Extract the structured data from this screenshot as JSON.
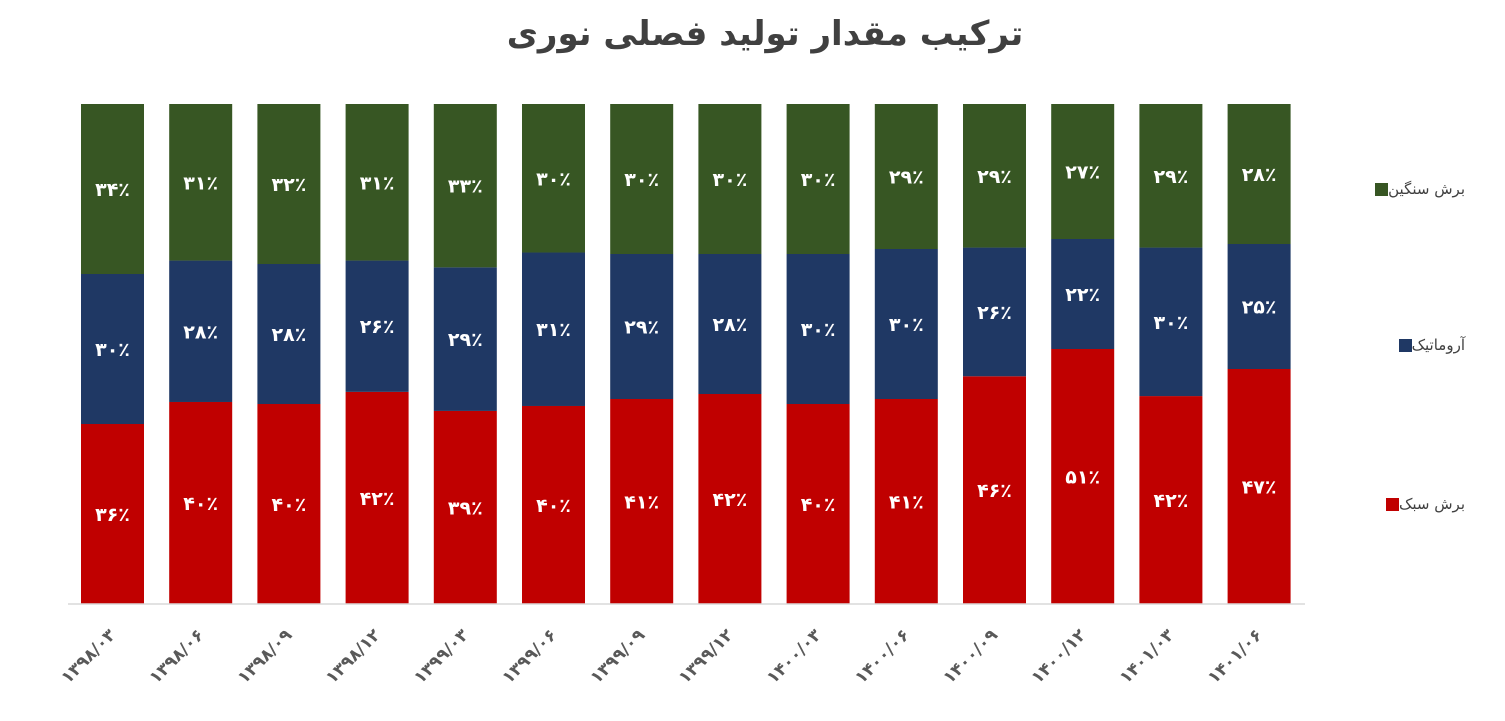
{
  "chart_data": {
    "type": "bar",
    "stacked": true,
    "normalized": true,
    "title": "ترکیب مقدار تولید فصلی نوری",
    "categories": [
      "۱۳۹۸/۰۳",
      "۱۳۹۸/۰۶",
      "۱۳۹۸/۰۹",
      "۱۳۹۸/۱۲",
      "۱۳۹۹/۰۳",
      "۱۳۹۹/۰۶",
      "۱۳۹۹/۰۹",
      "۱۳۹۹/۱۲",
      "۱۴۰۰/۰۳",
      "۱۴۰۰/۰۶",
      "۱۴۰۰/۰۹",
      "۱۴۰۰/۱۲",
      "۱۴۰۱/۰۳",
      "۱۴۰۱/۰۶"
    ],
    "series": [
      {
        "name": "برش سبک",
        "color": "#c00000",
        "values": [
          36,
          40,
          40,
          42,
          39,
          40,
          41,
          42,
          40,
          41,
          46,
          51,
          42,
          47
        ],
        "labels": [
          "۳۶٪",
          "۴۰٪",
          "۴۰٪",
          "۴۲٪",
          "۳۹٪",
          "۴۰٪",
          "۴۱٪",
          "۴۲٪",
          "۴۰٪",
          "۴۱٪",
          "۴۶٪",
          "۵۱٪",
          "۴۲٪",
          "۴۷٪"
        ]
      },
      {
        "name": "آروماتیک",
        "color": "#1f3864",
        "values": [
          30,
          28,
          28,
          26,
          29,
          31,
          29,
          28,
          30,
          30,
          26,
          22,
          30,
          25
        ],
        "labels": [
          "۳۰٪",
          "۲۸٪",
          "۲۸٪",
          "۲۶٪",
          "۲۹٪",
          "۳۱٪",
          "۲۹٪",
          "۲۸٪",
          "۳۰٪",
          "۳۰٪",
          "۲۶٪",
          "۲۲٪",
          "۳۰٪",
          "۲۵٪"
        ]
      },
      {
        "name": "برش سنگین",
        "color": "#375623",
        "values": [
          34,
          31,
          32,
          31,
          33,
          30,
          30,
          30,
          30,
          29,
          29,
          27,
          29,
          28
        ],
        "labels": [
          "۳۴٪",
          "۳۱٪",
          "۳۲٪",
          "۳۱٪",
          "۳۳٪",
          "۳۰٪",
          "۳۰٪",
          "۳۰٪",
          "۳۰٪",
          "۲۹٪",
          "۲۹٪",
          "۲۷٪",
          "۲۹٪",
          "۲۸٪"
        ]
      }
    ],
    "ylim": [
      0,
      100
    ],
    "grid": false,
    "legend_position": "right"
  }
}
